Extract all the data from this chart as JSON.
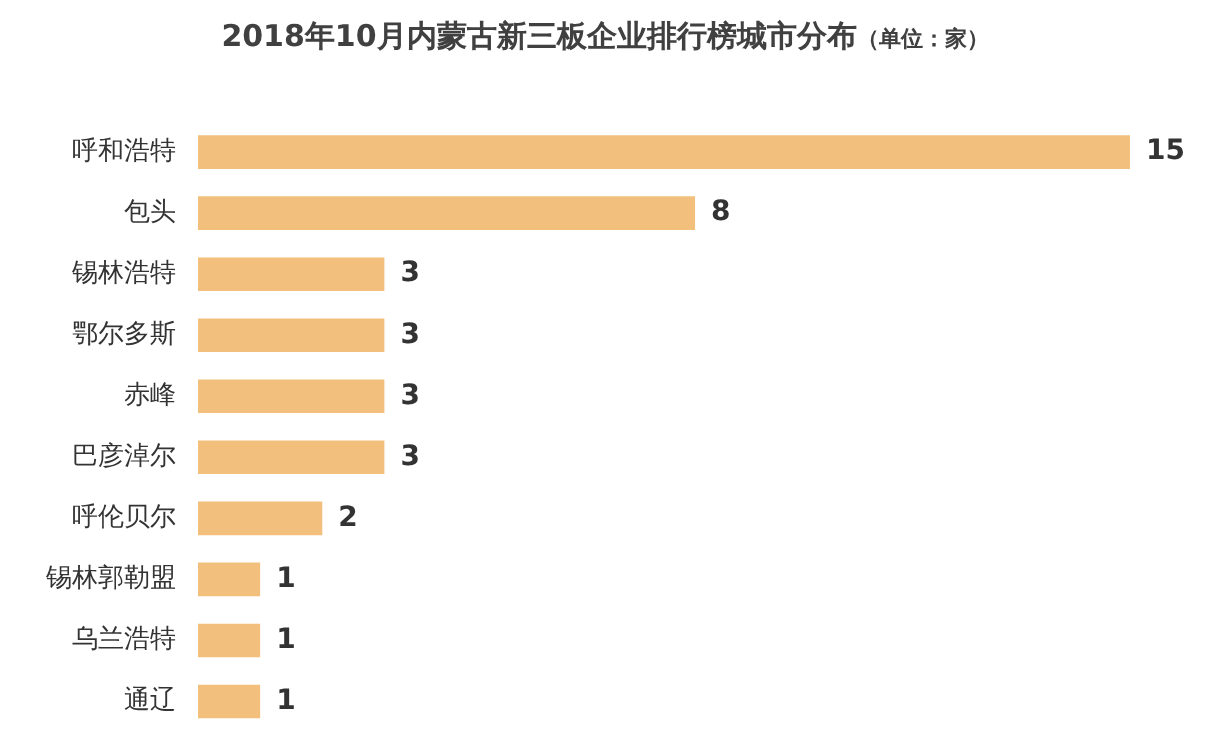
{
  "chart_data": {
    "type": "bar",
    "orientation": "horizontal",
    "title": "2018年10月内蒙古新三板企业排行榜城市分布",
    "subtitle": "（单位：家）",
    "categories": [
      "呼和浩特",
      "包头",
      "锡林浩特",
      "鄂尔多斯",
      "赤峰",
      "巴彦淖尔",
      "呼伦贝尔",
      "锡林郭勒盟",
      "乌兰浩特",
      "通辽"
    ],
    "values": [
      15,
      8,
      3,
      3,
      3,
      3,
      2,
      1,
      1,
      1
    ],
    "color": "#f2c07c",
    "xlim": [
      0,
      15
    ],
    "tick_labels": "y",
    "data_labels": true
  }
}
